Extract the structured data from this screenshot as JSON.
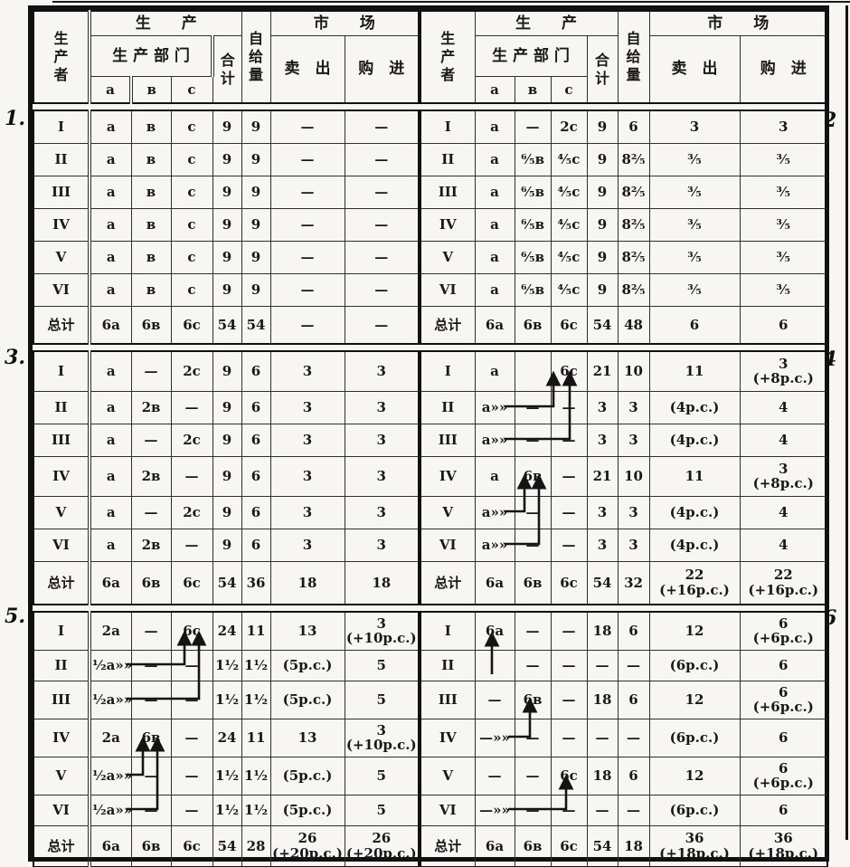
{
  "margins": {
    "left": [
      "1.",
      "3.",
      "5."
    ],
    "right": [
      "2",
      "4",
      "6"
    ]
  },
  "header": {
    "producer": "生\n产\n者",
    "production": "生　　产",
    "departments": "生 产 部 门",
    "a": "a",
    "b": "в",
    "c": "c",
    "total": "合\n计",
    "self_supply": "自\n给\n量",
    "market": "市　　场",
    "sell": "卖　出",
    "buy": "购　进"
  },
  "tables": {
    "t1": {
      "number": "1.",
      "rows": [
        [
          "I",
          "a",
          "в",
          "c",
          "9",
          "9",
          "—",
          "—"
        ],
        [
          "II",
          "a",
          "в",
          "c",
          "9",
          "9",
          "—",
          "—"
        ],
        [
          "III",
          "a",
          "в",
          "c",
          "9",
          "9",
          "—",
          "—"
        ],
        [
          "IV",
          "a",
          "в",
          "c",
          "9",
          "9",
          "—",
          "—"
        ],
        [
          "V",
          "a",
          "в",
          "c",
          "9",
          "9",
          "—",
          "—"
        ],
        [
          "VI",
          "a",
          "в",
          "c",
          "9",
          "9",
          "—",
          "—"
        ]
      ],
      "total": [
        "总计",
        "6a",
        "6в",
        "6c",
        "54",
        "54",
        "—",
        "—"
      ]
    },
    "t2": {
      "number": "2",
      "rows": [
        [
          "I",
          "a",
          "—",
          "2c",
          "9",
          "6",
          "3",
          "3"
        ],
        [
          "II",
          "a",
          "⁶⁄₅в",
          "⁴⁄₅c",
          "9",
          "8²⁄₅",
          "³⁄₅",
          "³⁄₅"
        ],
        [
          "III",
          "a",
          "⁶⁄₅в",
          "⁴⁄₅c",
          "9",
          "8²⁄₅",
          "³⁄₅",
          "³⁄₅"
        ],
        [
          "IV",
          "a",
          "⁶⁄₅в",
          "⁴⁄₅c",
          "9",
          "8²⁄₅",
          "³⁄₅",
          "³⁄₅"
        ],
        [
          "V",
          "a",
          "⁶⁄₅в",
          "⁴⁄₅c",
          "9",
          "8²⁄₅",
          "³⁄₅",
          "³⁄₅"
        ],
        [
          "VI",
          "a",
          "⁶⁄₅в",
          "⁴⁄₅c",
          "9",
          "8²⁄₅",
          "³⁄₅",
          "³⁄₅"
        ]
      ],
      "total": [
        "总计",
        "6a",
        "6в",
        "6c",
        "54",
        "48",
        "6",
        "6"
      ]
    },
    "t3": {
      "number": "3.",
      "rows": [
        [
          "I",
          "a",
          "—",
          "2c",
          "9",
          "6",
          "3",
          "3"
        ],
        [
          "II",
          "a",
          "2в",
          "—",
          "9",
          "6",
          "3",
          "3"
        ],
        [
          "III",
          "a",
          "—",
          "2c",
          "9",
          "6",
          "3",
          "3"
        ],
        [
          "IV",
          "a",
          "2в",
          "—",
          "9",
          "6",
          "3",
          "3"
        ],
        [
          "V",
          "a",
          "—",
          "2c",
          "9",
          "6",
          "3",
          "3"
        ],
        [
          "VI",
          "a",
          "2в",
          "—",
          "9",
          "6",
          "3",
          "3"
        ]
      ],
      "total": [
        "总计",
        "6a",
        "6в",
        "6c",
        "54",
        "36",
        "18",
        "18"
      ]
    },
    "t4": {
      "number": "4",
      "rows": [
        [
          "I",
          "a",
          "",
          "6c",
          "21",
          "10",
          "11",
          "3\n(+8p.c.)"
        ],
        [
          "II",
          "a»»",
          "—",
          "—",
          "3",
          "3",
          "(4p.c.)",
          "4"
        ],
        [
          "III",
          "a»»",
          "—",
          "—",
          "3",
          "3",
          "(4p.c.)",
          "4"
        ],
        [
          "IV",
          "a",
          "6в",
          "—",
          "21",
          "10",
          "11",
          "3\n(+8p.c.)"
        ],
        [
          "V",
          "a»»",
          "—",
          "—",
          "3",
          "3",
          "(4p.c.)",
          "4"
        ],
        [
          "VI",
          "a»»",
          "—",
          "—",
          "3",
          "3",
          "(4p.c.)",
          "4"
        ]
      ],
      "total": [
        "总计",
        "6a",
        "6в",
        "6c",
        "54",
        "32",
        "22\n(+16p.c.)",
        "22\n(+16p.c.)"
      ],
      "arrows": [
        {
          "from": "II.a",
          "to": "I.c"
        },
        {
          "from": "III.a",
          "to": "I.c"
        },
        {
          "from": "V.a",
          "to": "IV.в"
        },
        {
          "from": "VI.a",
          "to": "IV.в"
        }
      ]
    },
    "t5": {
      "number": "5.",
      "rows": [
        [
          "I",
          "2a",
          "—",
          "6c",
          "24",
          "11",
          "13",
          "3\n(+10p.c.)"
        ],
        [
          "II",
          "¹⁄₂a»»",
          "—",
          "—",
          "1¹⁄₂",
          "1¹⁄₂",
          "(5p.c.)",
          "5"
        ],
        [
          "III",
          "¹⁄₂a»»",
          "—",
          "—",
          "1¹⁄₂",
          "1¹⁄₂",
          "(5p.c.)",
          "5"
        ],
        [
          "IV",
          "2a",
          "6в",
          "—",
          "24",
          "11",
          "13",
          "3\n(+10p.c.)"
        ],
        [
          "V",
          "¹⁄₂a»»",
          "—",
          "—",
          "1¹⁄₂",
          "1¹⁄₂",
          "(5p.c.)",
          "5"
        ],
        [
          "VI",
          "¹⁄₂a»»",
          "—",
          "—",
          "1¹⁄₂",
          "1¹⁄₂",
          "(5p.c.)",
          "5"
        ]
      ],
      "total": [
        "总计",
        "6a",
        "6в",
        "6c",
        "54",
        "28",
        "26\n(+20p.c.)",
        "26\n(+20p.c.)"
      ],
      "arrows": [
        {
          "from": "II.a",
          "to": "I.c"
        },
        {
          "from": "III.a",
          "to": "I.c"
        },
        {
          "from": "V.a",
          "to": "IV.в"
        },
        {
          "from": "VI.a",
          "to": "IV.в"
        }
      ]
    },
    "t6": {
      "number": "6",
      "rows": [
        [
          "I",
          "6a",
          "—",
          "—",
          "18",
          "6",
          "12",
          "6\n(+6p.c.)"
        ],
        [
          "II",
          "",
          "—",
          "—",
          "—",
          "—",
          "(6p.c.)",
          "6"
        ],
        [
          "III",
          "—",
          "6в",
          "—",
          "18",
          "6",
          "12",
          "6\n(+6p.c.)"
        ],
        [
          "IV",
          "—»»",
          "—",
          "—",
          "—",
          "—",
          "(6p.c.)",
          "6"
        ],
        [
          "V",
          "—",
          "—",
          "6c",
          "18",
          "6",
          "12",
          "6\n(+6p.c.)"
        ],
        [
          "VI",
          "—»»",
          "—",
          "—",
          "—",
          "—",
          "(6p.c.)",
          "6"
        ]
      ],
      "total": [
        "总计",
        "6a",
        "6в",
        "6c",
        "54",
        "18",
        "36\n(+18p.c.)",
        "36\n(+18p.c.)"
      ],
      "arrows": [
        {
          "from": "II.a",
          "to": "I.a"
        },
        {
          "from": "IV.a",
          "to": "III.в"
        },
        {
          "from": "VI.a",
          "to": "V.c"
        }
      ]
    }
  }
}
